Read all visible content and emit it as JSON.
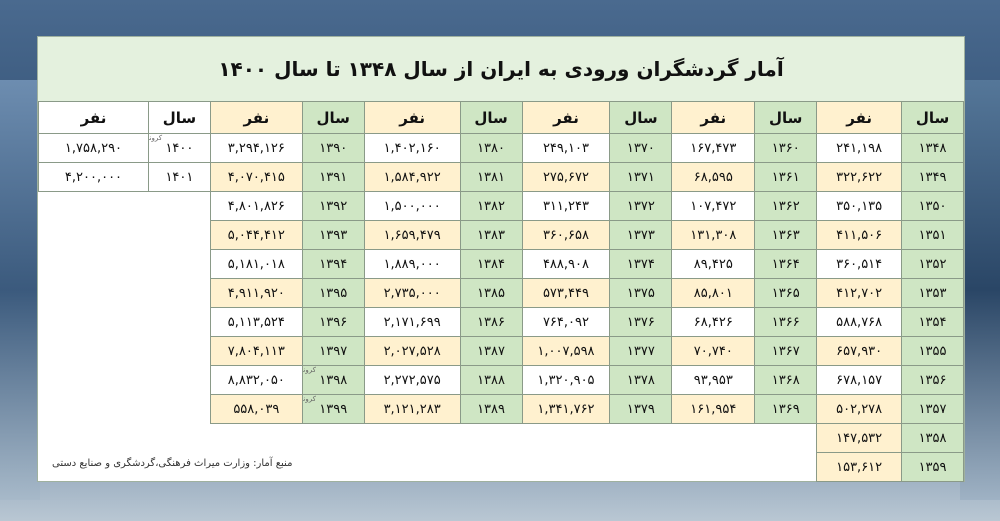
{
  "title": "آمار گردشگران ورودی به ایران از سال ۱۳۴۸ تا سال ۱۴۰۰",
  "headers": {
    "year": "سال",
    "people": "نفر"
  },
  "mark_label": "کرونا",
  "source": "منبع آمار: وزارت میراث فرهنگی،گردشگری و صنایع دستی",
  "col1": [
    {
      "year": "۱۳۴۸",
      "people": "۲۴۱,۱۹۸"
    },
    {
      "year": "۱۳۴۹",
      "people": "۳۲۲,۶۲۲"
    },
    {
      "year": "۱۳۵۰",
      "people": "۳۵۰,۱۳۵"
    },
    {
      "year": "۱۳۵۱",
      "people": "۴۱۱,۵۰۶"
    },
    {
      "year": "۱۳۵۲",
      "people": "۳۶۰,۵۱۴"
    },
    {
      "year": "۱۳۵۳",
      "people": "۴۱۲,۷۰۲"
    },
    {
      "year": "۱۳۵۴",
      "people": "۵۸۸,۷۶۸"
    },
    {
      "year": "۱۳۵۵",
      "people": "۶۵۷,۹۳۰"
    },
    {
      "year": "۱۳۵۶",
      "people": "۶۷۸,۱۵۷"
    },
    {
      "year": "۱۳۵۷",
      "people": "۵۰۲,۲۷۸"
    },
    {
      "year": "۱۳۵۸",
      "people": "۱۴۷,۵۳۲"
    },
    {
      "year": "۱۳۵۹",
      "people": "۱۵۳,۶۱۲"
    }
  ],
  "col2": [
    {
      "year": "۱۳۶۰",
      "people": "۱۶۷,۴۷۳"
    },
    {
      "year": "۱۳۶۱",
      "people": "۶۸,۵۹۵"
    },
    {
      "year": "۱۳۶۲",
      "people": "۱۰۷,۴۷۲"
    },
    {
      "year": "۱۳۶۳",
      "people": "۱۳۱,۳۰۸"
    },
    {
      "year": "۱۳۶۴",
      "people": "۸۹,۴۲۵"
    },
    {
      "year": "۱۳۶۵",
      "people": "۸۵,۸۰۱"
    },
    {
      "year": "۱۳۶۶",
      "people": "۶۸,۴۲۶"
    },
    {
      "year": "۱۳۶۷",
      "people": "۷۰,۷۴۰"
    },
    {
      "year": "۱۳۶۸",
      "people": "۹۳,۹۵۳"
    },
    {
      "year": "۱۳۶۹",
      "people": "۱۶۱,۹۵۴"
    }
  ],
  "col3": [
    {
      "year": "۱۳۷۰",
      "people": "۲۴۹,۱۰۳"
    },
    {
      "year": "۱۳۷۱",
      "people": "۲۷۵,۶۷۲"
    },
    {
      "year": "۱۳۷۲",
      "people": "۳۱۱,۲۴۳"
    },
    {
      "year": "۱۳۷۳",
      "people": "۳۶۰,۶۵۸"
    },
    {
      "year": "۱۳۷۴",
      "people": "۴۸۸,۹۰۸"
    },
    {
      "year": "۱۳۷۵",
      "people": "۵۷۳,۴۴۹"
    },
    {
      "year": "۱۳۷۶",
      "people": "۷۶۴,۰۹۲"
    },
    {
      "year": "۱۳۷۷",
      "people": "۱,۰۰۷,۵۹۸"
    },
    {
      "year": "۱۳۷۸",
      "people": "۱,۳۲۰,۹۰۵"
    },
    {
      "year": "۱۳۷۹",
      "people": "۱,۳۴۱,۷۶۲"
    }
  ],
  "col4": [
    {
      "year": "۱۳۸۰",
      "people": "۱,۴۰۲,۱۶۰"
    },
    {
      "year": "۱۳۸۱",
      "people": "۱,۵۸۴,۹۲۲"
    },
    {
      "year": "۱۳۸۲",
      "people": "۱,۵۰۰,۰۰۰"
    },
    {
      "year": "۱۳۸۳",
      "people": "۱,۶۵۹,۴۷۹"
    },
    {
      "year": "۱۳۸۴",
      "people": "۱,۸۸۹,۰۰۰"
    },
    {
      "year": "۱۳۸۵",
      "people": "۲,۷۳۵,۰۰۰"
    },
    {
      "year": "۱۳۸۶",
      "people": "۲,۱۷۱,۶۹۹"
    },
    {
      "year": "۱۳۸۷",
      "people": "۲,۰۲۷,۵۲۸"
    },
    {
      "year": "۱۳۸۸",
      "people": "۲,۲۷۲,۵۷۵"
    },
    {
      "year": "۱۳۸۹",
      "people": "۳,۱۲۱,۲۸۳"
    }
  ],
  "col5": [
    {
      "year": "۱۳۹۰",
      "people": "۳,۲۹۴,۱۲۶"
    },
    {
      "year": "۱۳۹۱",
      "people": "۴,۰۷۰,۴۱۵"
    },
    {
      "year": "۱۳۹۲",
      "people": "۴,۸۰۱,۸۲۶"
    },
    {
      "year": "۱۳۹۳",
      "people": "۵,۰۴۴,۴۱۲"
    },
    {
      "year": "۱۳۹۴",
      "people": "۵,۱۸۱,۰۱۸"
    },
    {
      "year": "۱۳۹۵",
      "people": "۴,۹۱۱,۹۲۰"
    },
    {
      "year": "۱۳۹۶",
      "people": "۵,۱۱۳,۵۲۴"
    },
    {
      "year": "۱۳۹۷",
      "people": "۷,۸۰۴,۱۱۳"
    },
    {
      "year": "۱۳۹۸",
      "people": "۸,۸۳۲,۰۵۰"
    },
    {
      "year": "۱۳۹۹",
      "people": "۵۵۸,۰۳۹"
    }
  ],
  "col6": [
    {
      "year": "۱۴۰۰",
      "people": "۱,۷۵۸,۲۹۰"
    },
    {
      "year": "۱۴۰۱",
      "people": "۴,۲۰۰,۰۰۰"
    }
  ]
}
